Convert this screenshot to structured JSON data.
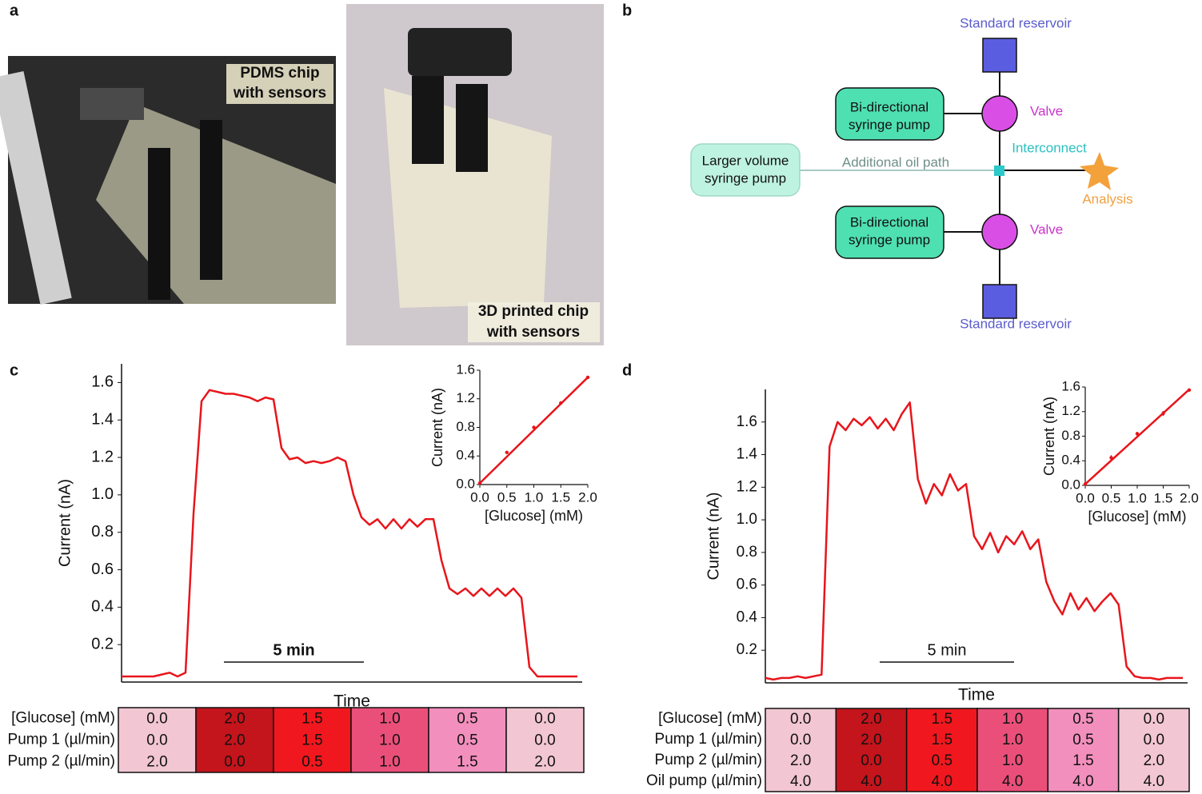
{
  "panel_labels": [
    "a",
    "b",
    "c",
    "d"
  ],
  "photos": [
    {
      "caption": [
        "PDMS chip",
        "with sensors"
      ]
    },
    {
      "caption": [
        "3D printed chip",
        "with sensors"
      ]
    }
  ],
  "diagram": {
    "reservoir_top": "Standard reservoir",
    "pump_top": [
      "Bi-directional",
      "syringe pump"
    ],
    "valve_top": "Valve",
    "large_pump": [
      "Larger volume",
      "syringe pump"
    ],
    "oil_path": "Additional oil path",
    "interconnect": "Interconnect",
    "analysis": "Analysis",
    "pump_bottom": [
      "Bi-directional",
      "syringe pump"
    ],
    "valve_bottom": "Valve",
    "reservoir_bottom": "Standard reservoir"
  },
  "chart_data": [
    {
      "type": "line",
      "ylabel": "Current (nA)",
      "xlabel": "Time",
      "annotation": "5 min",
      "color": "#e8151b",
      "values": [
        0.03,
        0.03,
        0.03,
        0.03,
        0.03,
        0.04,
        0.05,
        0.03,
        0.05,
        0.9,
        1.5,
        1.56,
        1.55,
        1.54,
        1.54,
        1.53,
        1.52,
        1.5,
        1.52,
        1.51,
        1.25,
        1.19,
        1.2,
        1.17,
        1.18,
        1.17,
        1.18,
        1.2,
        1.18,
        1.0,
        0.88,
        0.84,
        0.87,
        0.82,
        0.87,
        0.82,
        0.87,
        0.83,
        0.87,
        0.87,
        0.65,
        0.5,
        0.47,
        0.5,
        0.46,
        0.5,
        0.46,
        0.5,
        0.46,
        0.5,
        0.45,
        0.08,
        0.03,
        0.03,
        0.03,
        0.03,
        0.03,
        0.03
      ],
      "ylim": [
        0,
        1.7
      ],
      "yticks": [
        0.2,
        0.4,
        0.6,
        0.8,
        {
          "value": 1,
          "label": "1.0"
        },
        1.2,
        1.4,
        1.6
      ]
    },
    {
      "type": "scatter",
      "xlabel": "[Glucose] (mM)",
      "ylabel": "Current (nA)",
      "color": "#e8151b",
      "x": [
        0,
        0.5,
        1,
        1.5,
        2
      ],
      "values": [
        0.02,
        0.45,
        0.8,
        1.14,
        1.5
      ],
      "errors": [
        0.02,
        0.02,
        0.02,
        0.02,
        0.02
      ],
      "fit": {
        "x": [
          0,
          2
        ],
        "values": [
          0.02,
          1.5
        ]
      },
      "xlim": [
        0,
        2
      ],
      "ylim": [
        0,
        1.6
      ],
      "xticks": [
        {
          "value": 0,
          "label": "0.0"
        },
        0.5,
        {
          "value": 1,
          "label": "1.0"
        },
        1.5,
        {
          "value": 2,
          "label": "2.0"
        }
      ],
      "yticks": [
        {
          "value": 0,
          "label": "0.0"
        },
        0.4,
        0.8,
        1.2,
        1.6
      ]
    },
    {
      "type": "line",
      "ylabel": "Current (nA)",
      "xlabel": "Time",
      "annotation": "5 min",
      "color": "#e8151b",
      "values": [
        0.03,
        0.02,
        0.03,
        0.03,
        0.04,
        0.03,
        0.04,
        0.05,
        1.45,
        1.6,
        1.55,
        1.62,
        1.58,
        1.63,
        1.56,
        1.62,
        1.55,
        1.65,
        1.72,
        1.25,
        1.1,
        1.22,
        1.15,
        1.28,
        1.18,
        1.22,
        0.9,
        0.82,
        0.92,
        0.8,
        0.9,
        0.85,
        0.93,
        0.82,
        0.88,
        0.62,
        0.5,
        0.42,
        0.55,
        0.45,
        0.52,
        0.44,
        0.5,
        0.55,
        0.48,
        0.1,
        0.04,
        0.03,
        0.03,
        0.02,
        0.03,
        0.03,
        0.03
      ],
      "ylim": [
        0,
        1.8
      ],
      "yticks": [
        0.2,
        0.4,
        0.6,
        0.8,
        {
          "value": 1,
          "label": "1.0"
        },
        1.2,
        1.4,
        1.6
      ]
    },
    {
      "type": "scatter",
      "xlabel": "[Glucose] (mM)",
      "ylabel": "Current (nA)",
      "color": "#e8151b",
      "x": [
        0,
        0.5,
        1,
        1.5,
        2
      ],
      "values": [
        0.02,
        0.45,
        0.84,
        1.17,
        1.55
      ],
      "errors": [
        0.02,
        0.04,
        0.03,
        0.04,
        0.02
      ],
      "fit": {
        "x": [
          0,
          2
        ],
        "values": [
          0.02,
          1.56
        ]
      },
      "xlim": [
        0,
        2
      ],
      "ylim": [
        0,
        1.6
      ],
      "xticks": [
        {
          "value": 0,
          "label": "0.0"
        },
        0.5,
        {
          "value": 1,
          "label": "1.0"
        },
        1.5,
        {
          "value": 2,
          "label": "2.0"
        }
      ],
      "yticks": [
        {
          "value": 0,
          "label": "0.0"
        },
        0.4,
        0.8,
        1.2,
        1.6
      ]
    }
  ],
  "tables": [
    {
      "row_labels": [
        "[Glucose] (mM)",
        "Pump 1 (µl/min)",
        "Pump 2 (µl/min)"
      ],
      "colors": [
        "#f2c6d3",
        "#c4141c",
        "#f0181e",
        "#ea4f7a",
        "#f28fbd",
        "#f2c6d3"
      ],
      "rows": [
        [
          "0.0",
          "2.0",
          "1.5",
          "1.0",
          "0.5",
          "0.0"
        ],
        [
          "0.0",
          "2.0",
          "1.5",
          "1.0",
          "0.5",
          "0.0"
        ],
        [
          "2.0",
          "0.0",
          "0.5",
          "1.0",
          "1.5",
          "2.0"
        ]
      ]
    },
    {
      "row_labels": [
        "[Glucose] (mM)",
        "Pump 1 (µl/min)",
        "Pump 2 (µl/min)",
        "Oil pump (µl/min)"
      ],
      "colors": [
        "#f2c6d3",
        "#c4141c",
        "#f0181e",
        "#ea4f7a",
        "#f28fbd",
        "#f2c6d3"
      ],
      "rows": [
        [
          "0.0",
          "2.0",
          "1.5",
          "1.0",
          "0.5",
          "0.0"
        ],
        [
          "0.0",
          "2.0",
          "1.5",
          "1.0",
          "0.5",
          "0.0"
        ],
        [
          "2.0",
          "0.0",
          "0.5",
          "1.0",
          "1.5",
          "2.0"
        ],
        [
          "4.0",
          "4.0",
          "4.0",
          "4.0",
          "4.0",
          "4.0"
        ]
      ]
    }
  ]
}
